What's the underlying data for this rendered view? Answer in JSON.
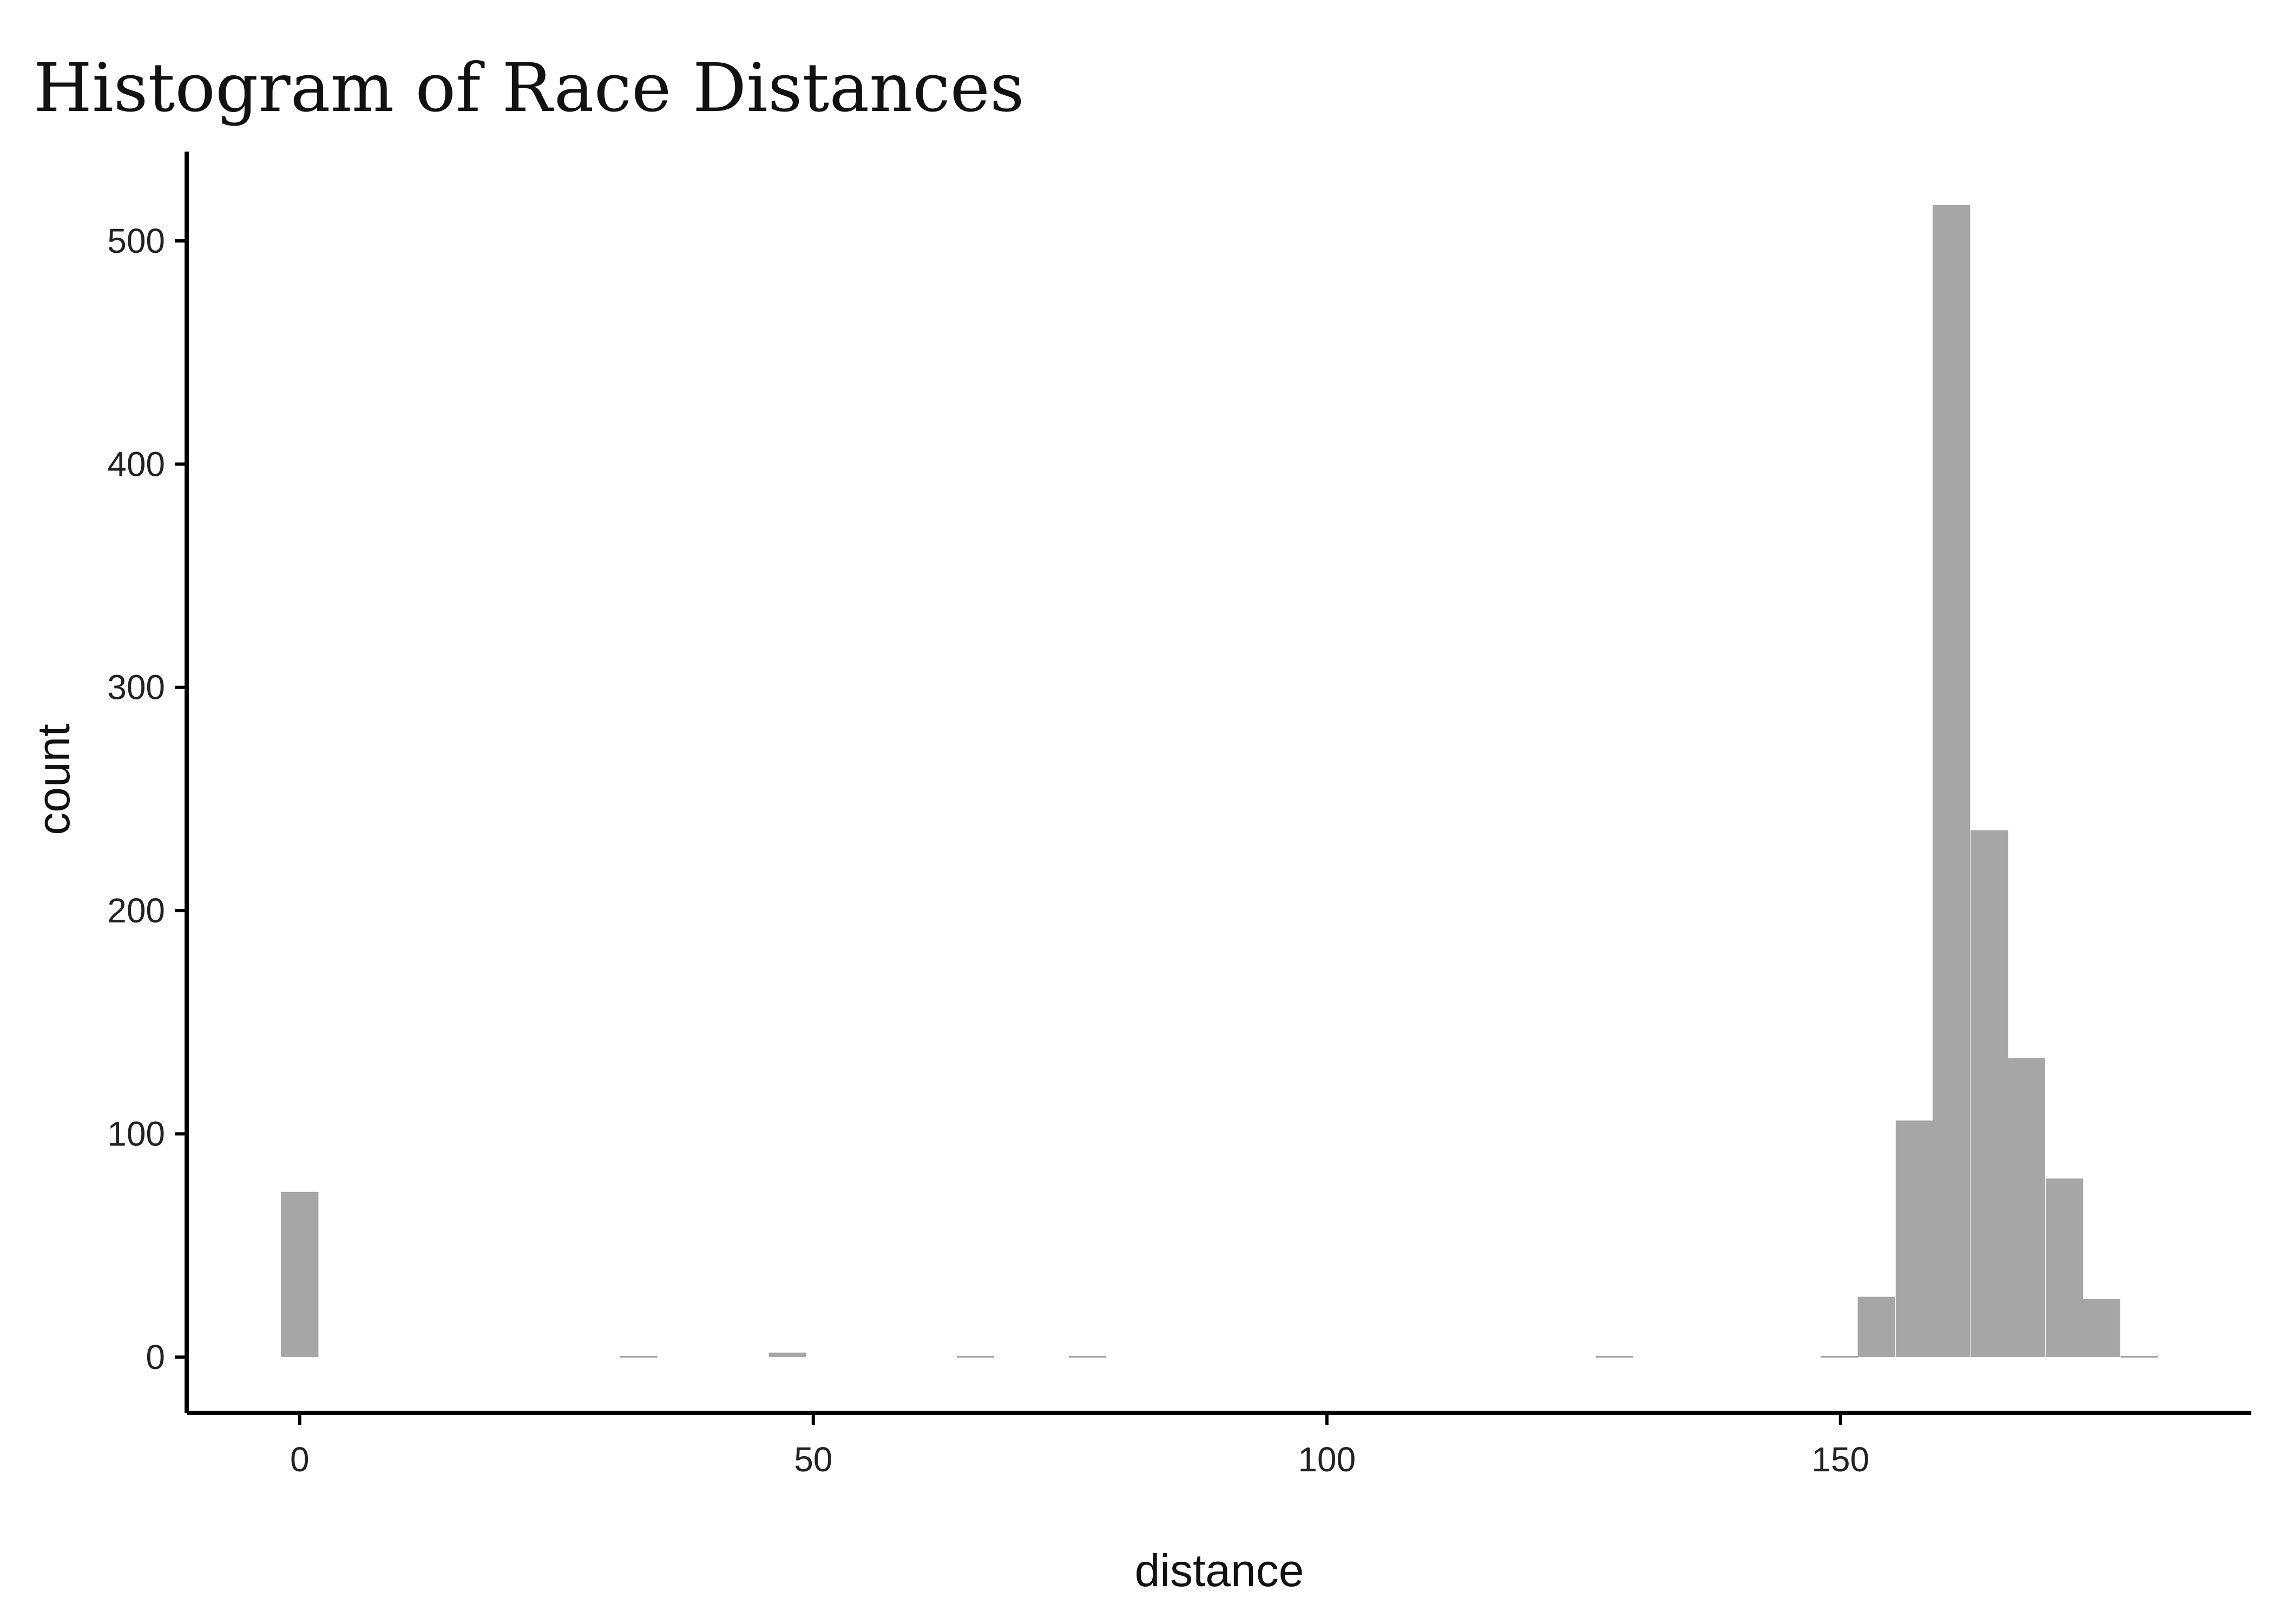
{
  "chart_data": {
    "type": "bar",
    "title": "Histogram of Race Distances",
    "xlabel": "distance",
    "ylabel": "count",
    "xlim": [
      -11,
      190
    ],
    "ylim": [
      -25,
      540
    ],
    "xticks": [
      0,
      50,
      100,
      150
    ],
    "yticks": [
      0,
      100,
      200,
      300,
      400,
      500
    ],
    "bin_width": 3.65,
    "bar_color": "#A6A6A6",
    "grid": false,
    "legend": "none",
    "bins": [
      {
        "x": 0,
        "count": 74
      },
      {
        "x": 33,
        "count": 0.5
      },
      {
        "x": 47.5,
        "count": 2
      },
      {
        "x": 65.8,
        "count": 0.5
      },
      {
        "x": 76.7,
        "count": 0.5
      },
      {
        "x": 128,
        "count": 0.5
      },
      {
        "x": 149.9,
        "count": 0.5
      },
      {
        "x": 153.5,
        "count": 27
      },
      {
        "x": 157.2,
        "count": 106
      },
      {
        "x": 160.8,
        "count": 516
      },
      {
        "x": 164.5,
        "count": 236
      },
      {
        "x": 168.1,
        "count": 134
      },
      {
        "x": 171.8,
        "count": 80
      },
      {
        "x": 175.4,
        "count": 26
      },
      {
        "x": 179.1,
        "count": 0.5
      }
    ]
  }
}
